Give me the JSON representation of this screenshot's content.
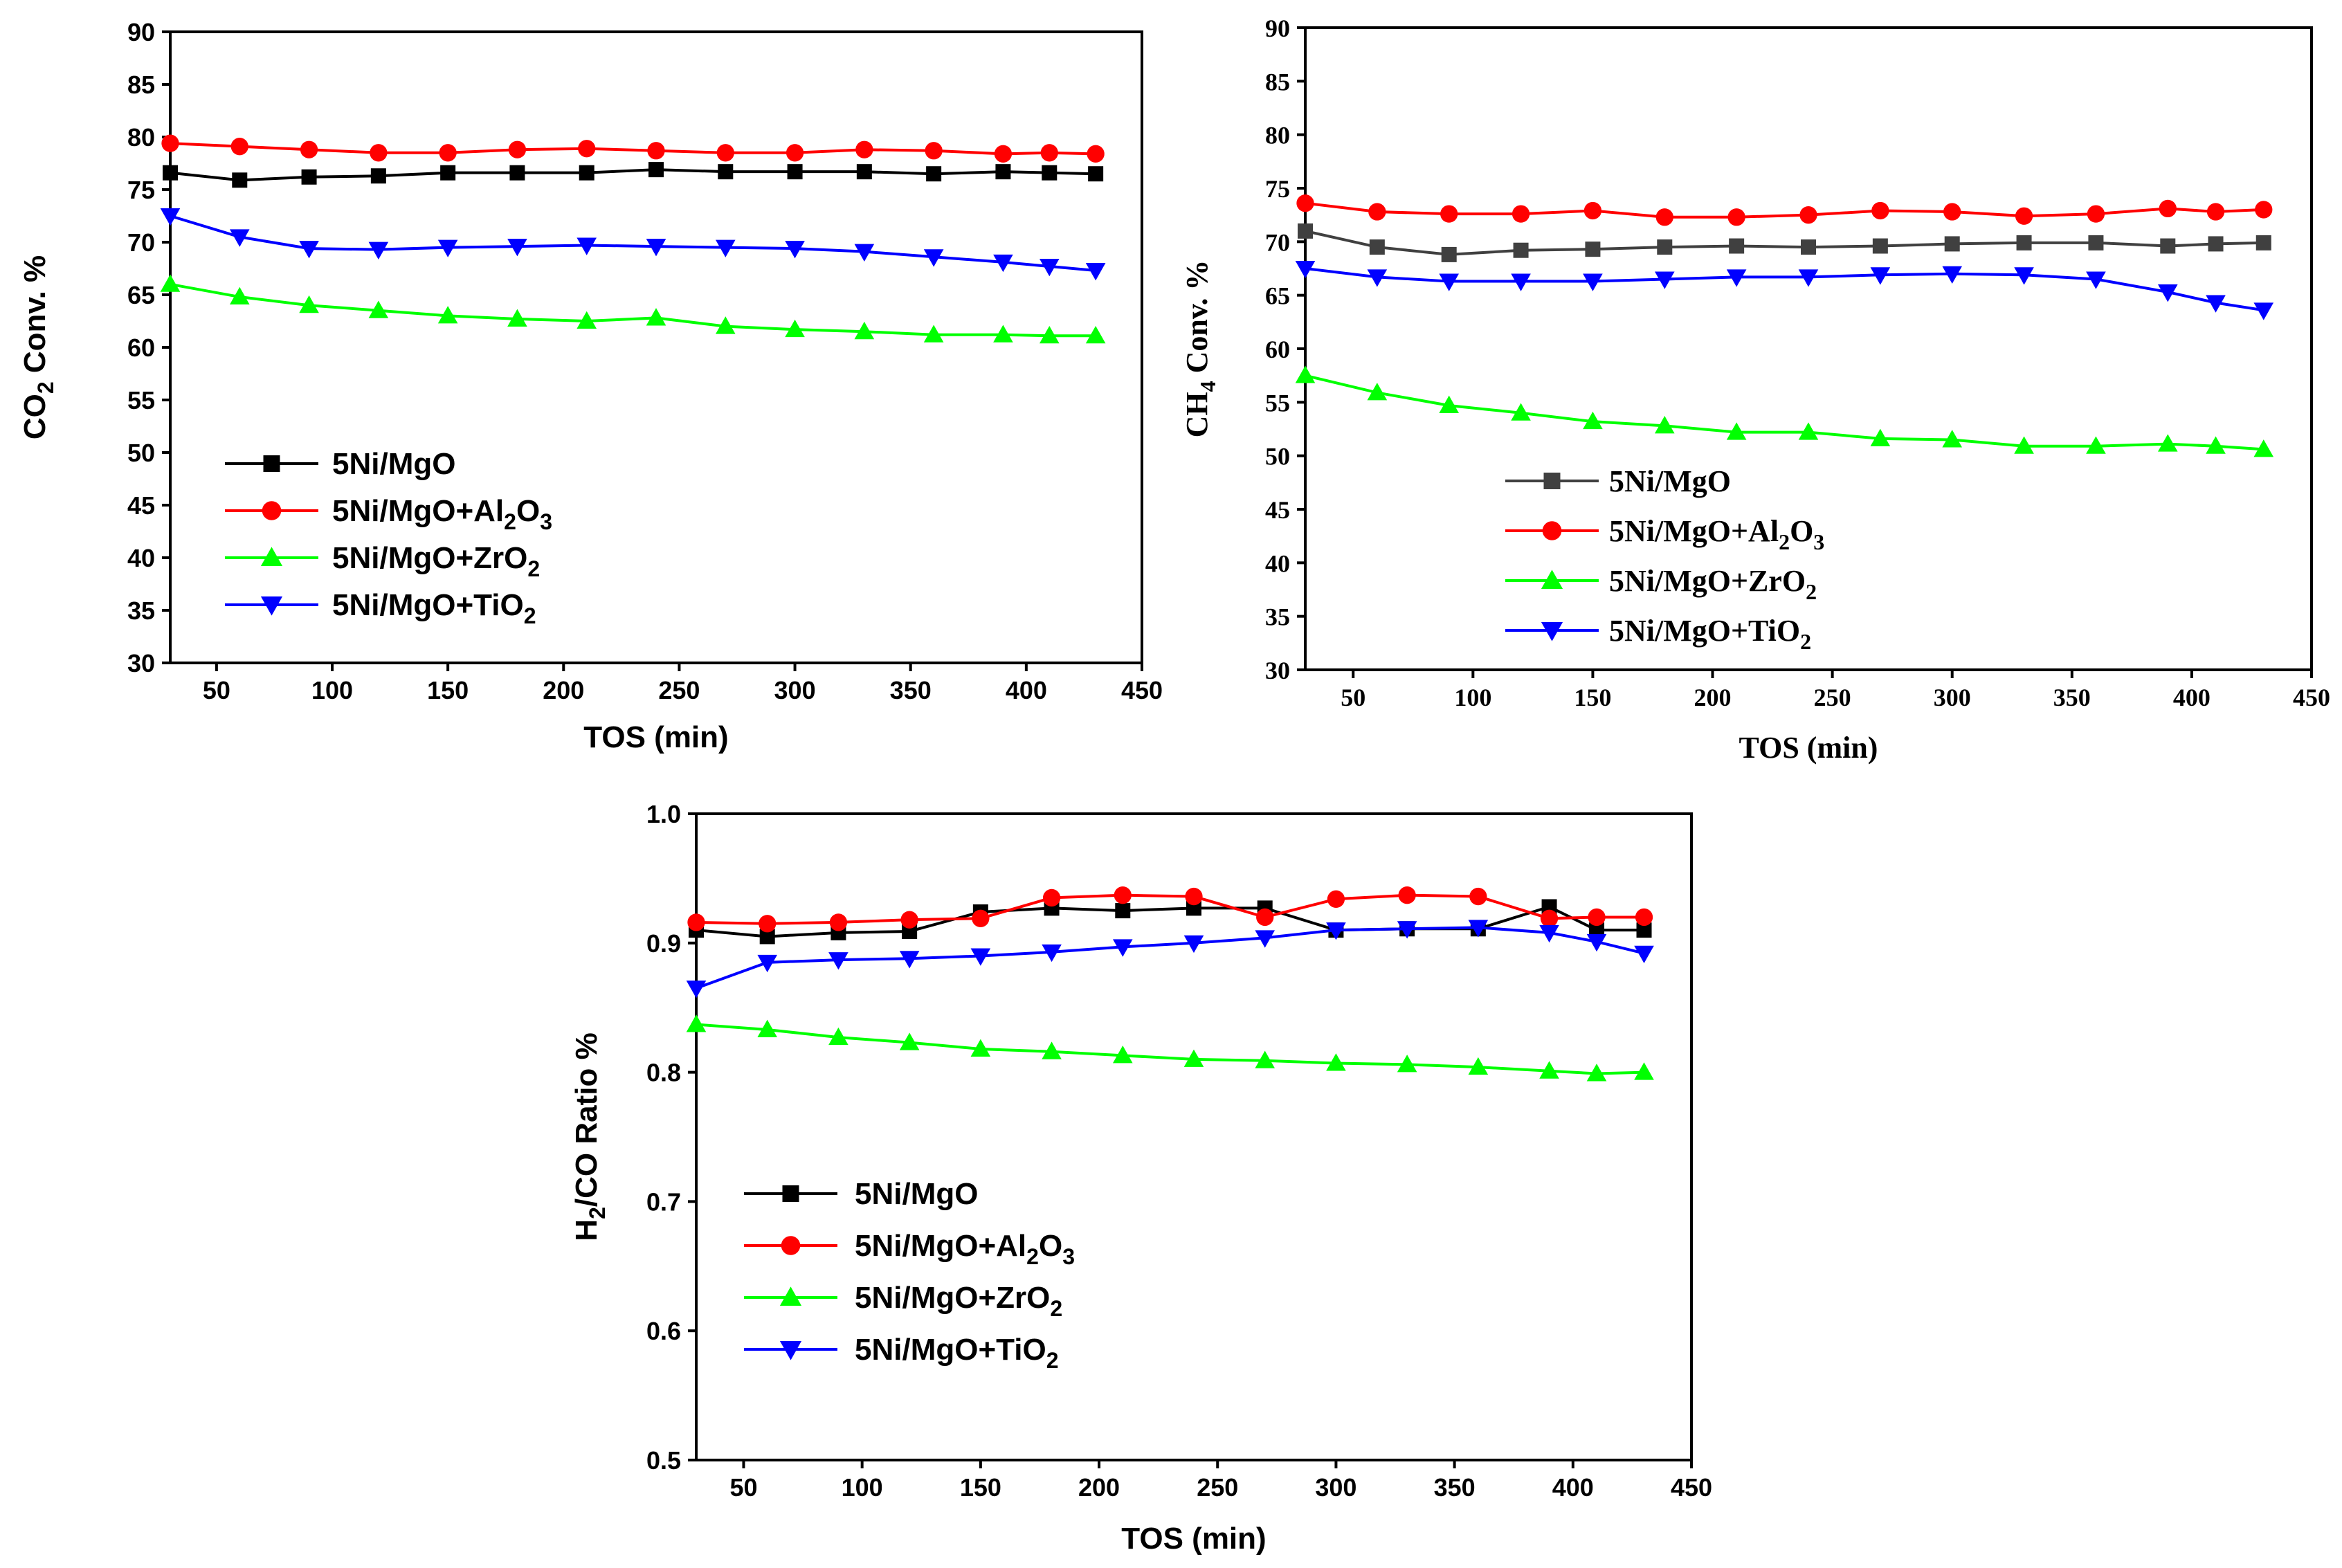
{
  "charts": [
    {
      "id": "co2",
      "type": "line",
      "ylabel_main": "CO",
      "ylabel_sub": "2",
      "ylabel_rest": " Conv. %",
      "xlabel": "TOS (min)",
      "xlim": [
        30,
        450
      ],
      "ylim": [
        30,
        90
      ],
      "xticks": [
        50,
        100,
        150,
        200,
        250,
        300,
        350,
        400,
        450
      ],
      "yticks": [
        30,
        35,
        40,
        45,
        50,
        55,
        60,
        65,
        70,
        75,
        80,
        85,
        90
      ],
      "serif": false,
      "x": [
        30,
        60,
        90,
        120,
        150,
        180,
        210,
        240,
        270,
        300,
        330,
        360,
        390,
        410,
        430
      ],
      "series": [
        {
          "name": "5Ni/MgO",
          "color": "#000000",
          "marker": "square",
          "values": [
            76.6,
            75.9,
            76.2,
            76.3,
            76.6,
            76.6,
            76.6,
            76.9,
            76.7,
            76.7,
            76.7,
            76.5,
            76.7,
            76.6,
            76.5
          ]
        },
        {
          "name": "5Ni/MgO+Al2O3",
          "color": "#ff0000",
          "marker": "circle",
          "values": [
            79.4,
            79.1,
            78.8,
            78.5,
            78.5,
            78.8,
            78.9,
            78.7,
            78.5,
            78.5,
            78.8,
            78.7,
            78.4,
            78.5,
            78.4
          ]
        },
        {
          "name": "5Ni/MgO+ZrO2",
          "color": "#00ff00",
          "marker": "triangle-up",
          "values": [
            66.0,
            64.8,
            64.0,
            63.5,
            63.0,
            62.7,
            62.5,
            62.8,
            62.0,
            61.7,
            61.5,
            61.2,
            61.2,
            61.1,
            61.1
          ]
        },
        {
          "name": "5Ni/MgO+TiO2",
          "color": "#0000ff",
          "marker": "triangle-down",
          "values": [
            72.5,
            70.5,
            69.4,
            69.3,
            69.5,
            69.6,
            69.7,
            69.6,
            69.5,
            69.4,
            69.1,
            68.6,
            68.1,
            67.7,
            67.3
          ]
        }
      ]
    },
    {
      "id": "ch4",
      "type": "line",
      "ylabel_main": "CH",
      "ylabel_sub": "4",
      "ylabel_rest": " Conv. %",
      "xlabel": "TOS (min)",
      "xlim": [
        30,
        450
      ],
      "ylim": [
        30,
        90
      ],
      "xticks": [
        50,
        100,
        150,
        200,
        250,
        300,
        350,
        400,
        450
      ],
      "yticks": [
        30,
        35,
        40,
        45,
        50,
        55,
        60,
        65,
        70,
        75,
        80,
        85,
        90
      ],
      "serif": true,
      "x": [
        30,
        60,
        90,
        120,
        150,
        180,
        210,
        240,
        270,
        300,
        330,
        360,
        390,
        410,
        430
      ],
      "series": [
        {
          "name": "5Ni/MgO",
          "color": "#404040",
          "marker": "square",
          "values": [
            71.0,
            69.5,
            68.8,
            69.2,
            69.3,
            69.5,
            69.6,
            69.5,
            69.6,
            69.8,
            69.9,
            69.9,
            69.6,
            69.8,
            69.9
          ]
        },
        {
          "name": "5Ni/MgO+Al2O3",
          "color": "#ff0000",
          "marker": "circle",
          "values": [
            73.6,
            72.8,
            72.6,
            72.6,
            72.9,
            72.3,
            72.3,
            72.5,
            72.9,
            72.8,
            72.4,
            72.6,
            73.1,
            72.8,
            73.0
          ]
        },
        {
          "name": "5Ni/MgO+ZrO2",
          "color": "#00ff00",
          "marker": "triangle-up",
          "values": [
            57.5,
            55.9,
            54.7,
            54.0,
            53.2,
            52.8,
            52.2,
            52.2,
            51.6,
            51.5,
            50.9,
            50.9,
            51.1,
            50.9,
            50.6
          ]
        },
        {
          "name": "5Ni/MgO+TiO2",
          "color": "#0000ff",
          "marker": "triangle-down",
          "values": [
            67.5,
            66.7,
            66.3,
            66.3,
            66.3,
            66.5,
            66.7,
            66.7,
            66.9,
            67.0,
            66.9,
            66.5,
            65.3,
            64.3,
            63.6
          ]
        }
      ]
    },
    {
      "id": "h2co",
      "type": "line",
      "ylabel_main": "H",
      "ylabel_sub": "2",
      "ylabel_rest": "/CO Ratio %",
      "xlabel": "TOS (min)",
      "xlim": [
        30,
        450
      ],
      "ylim": [
        0.5,
        1.0
      ],
      "xticks": [
        50,
        100,
        150,
        200,
        250,
        300,
        350,
        400,
        450
      ],
      "yticks": [
        0.5,
        0.6,
        0.7,
        0.8,
        0.9,
        1.0
      ],
      "ytick_labels": [
        "0.5",
        "0.6",
        "0.7",
        "0.8",
        "0.9",
        "1.0"
      ],
      "serif": false,
      "x": [
        30,
        60,
        90,
        120,
        150,
        180,
        210,
        240,
        270,
        300,
        330,
        360,
        390,
        410,
        430
      ],
      "series": [
        {
          "name": "5Ni/MgO",
          "color": "#000000",
          "marker": "square",
          "values": [
            0.91,
            0.905,
            0.908,
            0.909,
            0.924,
            0.927,
            0.925,
            0.927,
            0.927,
            0.91,
            0.911,
            0.911,
            0.928,
            0.91,
            0.91
          ]
        },
        {
          "name": "5Ni/MgO+Al2O3",
          "color": "#ff0000",
          "marker": "circle",
          "values": [
            0.916,
            0.915,
            0.916,
            0.918,
            0.919,
            0.935,
            0.937,
            0.936,
            0.92,
            0.934,
            0.937,
            0.936,
            0.919,
            0.92,
            0.92
          ]
        },
        {
          "name": "5Ni/MgO+ZrO2",
          "color": "#00ff00",
          "marker": "triangle-up",
          "values": [
            0.837,
            0.833,
            0.827,
            0.823,
            0.818,
            0.816,
            0.813,
            0.81,
            0.809,
            0.807,
            0.806,
            0.804,
            0.801,
            0.799,
            0.8
          ]
        },
        {
          "name": "5Ni/MgO+TiO2",
          "color": "#0000ff",
          "marker": "triangle-down",
          "values": [
            0.865,
            0.885,
            0.887,
            0.888,
            0.89,
            0.893,
            0.897,
            0.9,
            0.904,
            0.91,
            0.911,
            0.912,
            0.908,
            0.901,
            0.892
          ]
        }
      ]
    }
  ],
  "legend": [
    {
      "main": "5Ni/MgO",
      "sub": "",
      "after": ""
    },
    {
      "main": "5Ni/MgO+Al",
      "sub": "2",
      "mid": "O",
      "sub2": "3"
    },
    {
      "main": "5Ni/MgO+ZrO",
      "sub": "2",
      "after": ""
    },
    {
      "main": "5Ni/MgO+TiO",
      "sub": "2",
      "after": ""
    }
  ],
  "chart_data": [
    {
      "type": "line",
      "title": "",
      "xlabel": "TOS (min)",
      "ylabel": "CO2 Conv. %",
      "xlim": [
        30,
        450
      ],
      "ylim": [
        30,
        90
      ],
      "x": [
        30,
        60,
        90,
        120,
        150,
        180,
        210,
        240,
        270,
        300,
        330,
        360,
        390,
        410,
        430
      ],
      "series": [
        {
          "name": "5Ni/MgO",
          "values": [
            76.6,
            75.9,
            76.2,
            76.3,
            76.6,
            76.6,
            76.6,
            76.9,
            76.7,
            76.7,
            76.7,
            76.5,
            76.7,
            76.6,
            76.5
          ]
        },
        {
          "name": "5Ni/MgO+Al2O3",
          "values": [
            79.4,
            79.1,
            78.8,
            78.5,
            78.5,
            78.8,
            78.9,
            78.7,
            78.5,
            78.5,
            78.8,
            78.7,
            78.4,
            78.5,
            78.4
          ]
        },
        {
          "name": "5Ni/MgO+ZrO2",
          "values": [
            66.0,
            64.8,
            64.0,
            63.5,
            63.0,
            62.7,
            62.5,
            62.8,
            62.0,
            61.7,
            61.5,
            61.2,
            61.2,
            61.1,
            61.1
          ]
        },
        {
          "name": "5Ni/MgO+TiO2",
          "values": [
            72.5,
            70.5,
            69.4,
            69.3,
            69.5,
            69.6,
            69.7,
            69.6,
            69.5,
            69.4,
            69.1,
            68.6,
            68.1,
            67.7,
            67.3
          ]
        }
      ]
    },
    {
      "type": "line",
      "title": "",
      "xlabel": "TOS (min)",
      "ylabel": "CH4 Conv. %",
      "xlim": [
        30,
        450
      ],
      "ylim": [
        30,
        90
      ],
      "x": [
        30,
        60,
        90,
        120,
        150,
        180,
        210,
        240,
        270,
        300,
        330,
        360,
        390,
        410,
        430
      ],
      "series": [
        {
          "name": "5Ni/MgO",
          "values": [
            71.0,
            69.5,
            68.8,
            69.2,
            69.3,
            69.5,
            69.6,
            69.5,
            69.6,
            69.8,
            69.9,
            69.9,
            69.6,
            69.8,
            69.9
          ]
        },
        {
          "name": "5Ni/MgO+Al2O3",
          "values": [
            73.6,
            72.8,
            72.6,
            72.6,
            72.9,
            72.3,
            72.3,
            72.5,
            72.9,
            72.8,
            72.4,
            72.6,
            73.1,
            72.8,
            73.0
          ]
        },
        {
          "name": "5Ni/MgO+ZrO2",
          "values": [
            57.5,
            55.9,
            54.7,
            54.0,
            53.2,
            52.8,
            52.2,
            52.2,
            51.6,
            51.5,
            50.9,
            50.9,
            51.1,
            50.9,
            50.6
          ]
        },
        {
          "name": "5Ni/MgO+TiO2",
          "values": [
            67.5,
            66.7,
            66.3,
            66.3,
            66.3,
            66.5,
            66.7,
            66.7,
            66.9,
            67.0,
            66.9,
            66.5,
            65.3,
            64.3,
            63.6
          ]
        }
      ]
    },
    {
      "type": "line",
      "title": "",
      "xlabel": "TOS (min)",
      "ylabel": "H2/CO Ratio %",
      "xlim": [
        30,
        450
      ],
      "ylim": [
        0.5,
        1.0
      ],
      "x": [
        30,
        60,
        90,
        120,
        150,
        180,
        210,
        240,
        270,
        300,
        330,
        360,
        390,
        410,
        430
      ],
      "series": [
        {
          "name": "5Ni/MgO",
          "values": [
            0.91,
            0.905,
            0.908,
            0.909,
            0.924,
            0.927,
            0.925,
            0.927,
            0.927,
            0.91,
            0.911,
            0.911,
            0.928,
            0.91,
            0.91
          ]
        },
        {
          "name": "5Ni/MgO+Al2O3",
          "values": [
            0.916,
            0.915,
            0.916,
            0.918,
            0.919,
            0.935,
            0.937,
            0.936,
            0.92,
            0.934,
            0.937,
            0.936,
            0.919,
            0.92,
            0.92
          ]
        },
        {
          "name": "5Ni/MgO+ZrO2",
          "values": [
            0.837,
            0.833,
            0.827,
            0.823,
            0.818,
            0.816,
            0.813,
            0.81,
            0.809,
            0.807,
            0.806,
            0.804,
            0.801,
            0.799,
            0.8
          ]
        },
        {
          "name": "5Ni/MgO+TiO2",
          "values": [
            0.865,
            0.885,
            0.887,
            0.888,
            0.89,
            0.893,
            0.897,
            0.9,
            0.904,
            0.91,
            0.911,
            0.912,
            0.908,
            0.901,
            0.892
          ]
        }
      ]
    }
  ]
}
